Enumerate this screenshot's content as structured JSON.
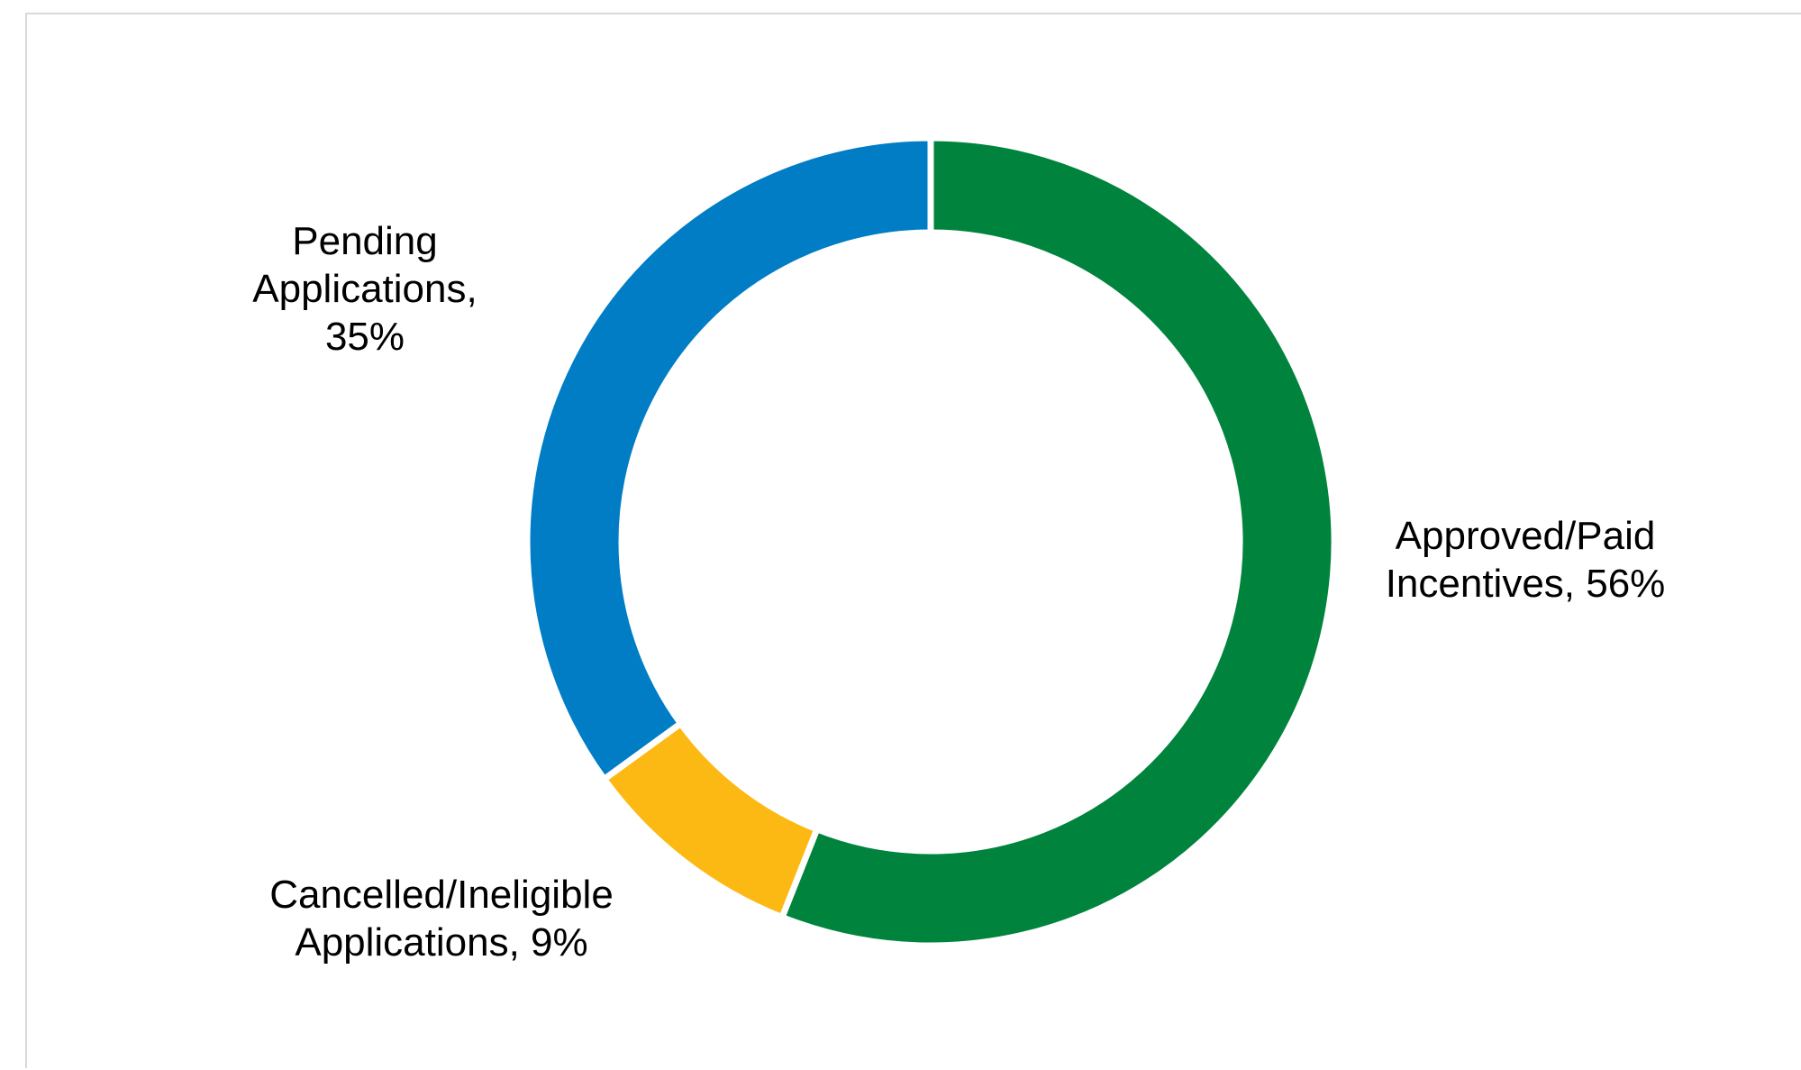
{
  "chart_data": {
    "type": "pie",
    "variant": "donut",
    "title": "",
    "grid": false,
    "legend": "none",
    "slices": [
      {
        "label": "Approved/Paid Incentives",
        "label_lines": [
          "Approved/Paid",
          "Incentives, 56%"
        ],
        "value": 56,
        "color": "#00843D"
      },
      {
        "label": "Cancelled/Ineligible Applications",
        "label_lines": [
          "Cancelled/Ineligible",
          "Applications, 9%"
        ],
        "value": 9,
        "color": "#FDB913"
      },
      {
        "label": "Pending Applications",
        "label_lines": [
          "Pending",
          "Applications,",
          "35%"
        ],
        "value": 35,
        "color": "#007DC5"
      }
    ]
  }
}
